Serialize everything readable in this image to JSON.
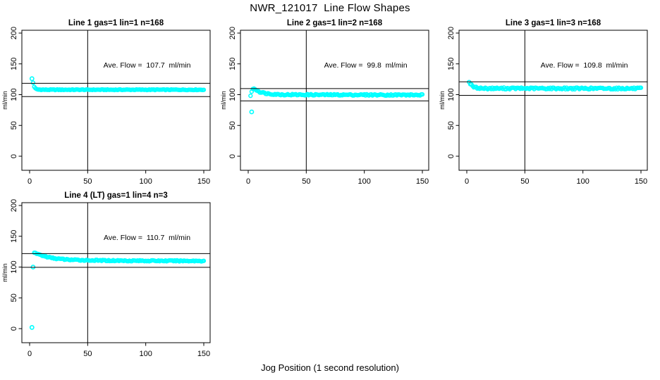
{
  "chart_data": {
    "type": "scatter",
    "title": "NWR_121017  Line Flow Shapes",
    "xlabel": "Jog Position (1 second resolution)",
    "ylabel": "ml/min",
    "xlim": [
      0,
      150
    ],
    "ylim": [
      0,
      200
    ],
    "x_ticks": [
      0,
      50,
      100,
      150
    ],
    "y_ticks": [
      0,
      50,
      100,
      150,
      200
    ],
    "grid": false,
    "legend": "none",
    "point_color": "#00ffff",
    "axis_color": "#000000",
    "panels": [
      {
        "id": "line-1",
        "title": "Line 1 gas=1 lin=1 n=168",
        "annotation": "Ave. Flow =  107.7  ml/min",
        "ave_flow_ml_min": 107.7,
        "gas": 1,
        "lin": 1,
        "n": 168,
        "vline_x": 50,
        "hlines_y": [
          96.9,
          118.5
        ],
        "flow_curve": [
          [
            3,
            119.5
          ],
          [
            4,
            113
          ],
          [
            5,
            110
          ],
          [
            6,
            108.8
          ],
          [
            8,
            108.2
          ],
          [
            15,
            108
          ],
          [
            150,
            108
          ]
        ],
        "outlier_points": [
          [
            2,
            126
          ]
        ],
        "noise": 0.6
      },
      {
        "id": "line-2",
        "title": "Line 2 gas=1 lin=2 n=168",
        "annotation": "Ave. Flow =  99.8  ml/min",
        "ave_flow_ml_min": 99.8,
        "gas": 1,
        "lin": 2,
        "n": 168,
        "vline_x": 50,
        "hlines_y": [
          89.8,
          109.8
        ],
        "flow_curve": [
          [
            2,
            99
          ],
          [
            3,
            105
          ],
          [
            4,
            108.5
          ],
          [
            5,
            110
          ],
          [
            6,
            109
          ],
          [
            8,
            106.5
          ],
          [
            10,
            104.5
          ],
          [
            14,
            102.5
          ],
          [
            20,
            101
          ],
          [
            30,
            100
          ],
          [
            60,
            99.8
          ],
          [
            150,
            99.5
          ]
        ],
        "outlier_points": [
          [
            3,
            72
          ]
        ],
        "noise": 1.1
      },
      {
        "id": "line-3",
        "title": "Line 3 gas=1 lin=3 n=168",
        "annotation": "Ave. Flow =  109.8  ml/min",
        "ave_flow_ml_min": 109.8,
        "gas": 1,
        "lin": 3,
        "n": 168,
        "vline_x": 50,
        "hlines_y": [
          98.8,
          120.8
        ],
        "flow_curve": [
          [
            2,
            121
          ],
          [
            3,
            118
          ],
          [
            4,
            115.5
          ],
          [
            5,
            113.5
          ],
          [
            7,
            111.8
          ],
          [
            10,
            110.8
          ],
          [
            15,
            110.2
          ],
          [
            150,
            110
          ]
        ],
        "outlier_points": [],
        "noise": 1.4
      },
      {
        "id": "line-4",
        "title": "Line 4 (LT) gas=1 lin=4 n=3",
        "annotation": "Ave. Flow =  110.7  ml/min",
        "ave_flow_ml_min": 110.7,
        "gas": 1,
        "lin": 4,
        "n": 3,
        "vline_x": 50,
        "hlines_y": [
          99.6,
          121.8
        ],
        "flow_curve": [
          [
            4,
            123
          ],
          [
            6,
            122
          ],
          [
            8,
            120.5
          ],
          [
            12,
            118
          ],
          [
            16,
            116
          ],
          [
            22,
            114
          ],
          [
            30,
            112.5
          ],
          [
            40,
            111.5
          ],
          [
            50,
            111
          ],
          [
            70,
            110.5
          ],
          [
            100,
            110.2
          ],
          [
            150,
            110
          ]
        ],
        "outlier_points": [
          [
            2,
            2
          ],
          [
            3,
            100
          ]
        ],
        "noise": 0.9
      }
    ]
  }
}
